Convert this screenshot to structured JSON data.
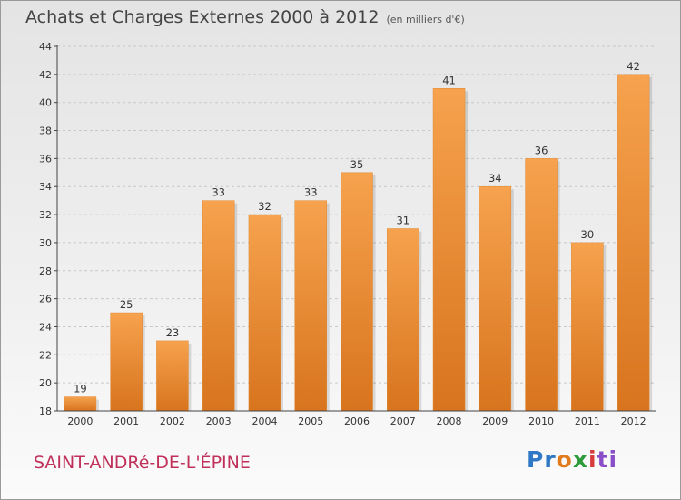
{
  "title": "Achats et Charges Externes 2000 à 2012",
  "subtitle": "(en milliers d'€)",
  "commune": "SAINT-ANDRé-DE-L'ÉPINE",
  "logo": {
    "p1": "Pr",
    "p2": "o",
    "p3": "x",
    "p4": "i",
    "p5": "ti"
  },
  "colors": {
    "bar_light": "#f6a24e",
    "bar_dark": "#d8741e",
    "axis": "#444444",
    "grid": "#c8c8c8"
  },
  "chart_data": {
    "type": "bar",
    "title": "Achats et Charges Externes 2000 à 2012",
    "subtitle": "(en milliers d'€)",
    "xlabel": "",
    "ylabel": "",
    "categories": [
      "2000",
      "2001",
      "2002",
      "2003",
      "2004",
      "2005",
      "2006",
      "2007",
      "2008",
      "2009",
      "2010",
      "2011",
      "2012"
    ],
    "values": [
      19,
      25,
      23,
      33,
      32,
      33,
      35,
      31,
      41,
      34,
      36,
      30,
      42
    ],
    "ylim": [
      18,
      44
    ],
    "yticks": [
      18,
      20,
      22,
      24,
      26,
      28,
      30,
      32,
      34,
      36,
      38,
      40,
      42,
      44
    ],
    "grid": true
  }
}
